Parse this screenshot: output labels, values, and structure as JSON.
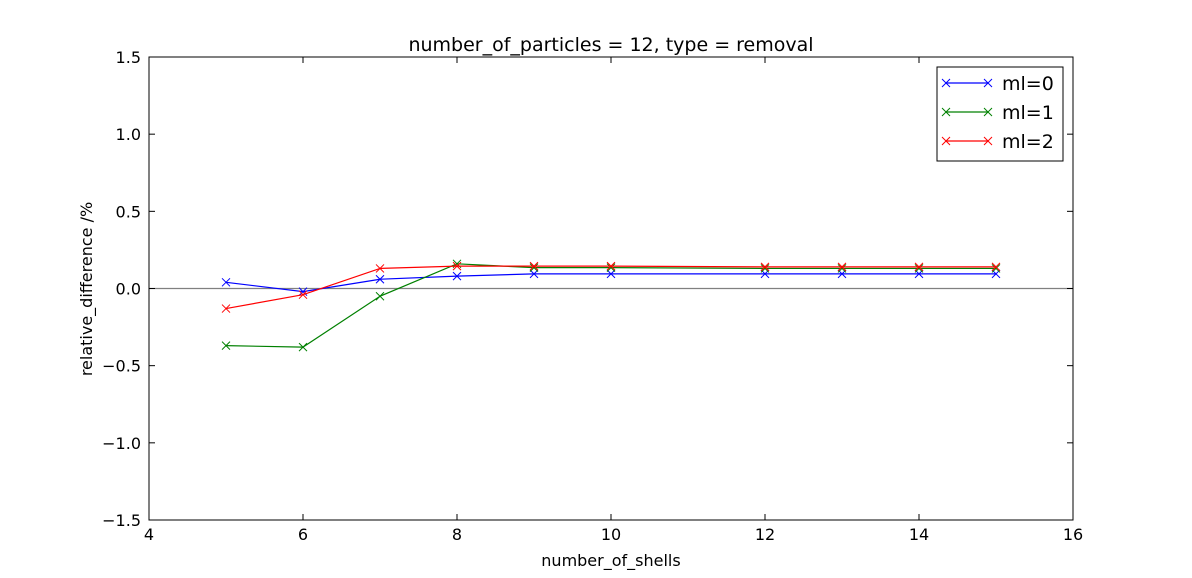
{
  "chart_data": {
    "type": "line",
    "title": "number_of_particles = 12, type = removal",
    "xlabel": "number_of_shells",
    "ylabel": "relative_difference /%",
    "xlim": [
      4,
      16
    ],
    "ylim": [
      -1.5,
      1.5
    ],
    "xticks": [
      4,
      6,
      8,
      10,
      12,
      14,
      16
    ],
    "yticks": [
      -1.5,
      -1.0,
      -0.5,
      0.0,
      0.5,
      1.0,
      1.5
    ],
    "xtick_labels": [
      "4",
      "6",
      "8",
      "10",
      "12",
      "14",
      "16"
    ],
    "ytick_labels": [
      "−1.5",
      "−1.0",
      "−0.5",
      "0.0",
      "0.5",
      "1.0",
      "1.5"
    ],
    "reference_line_y": 0.0,
    "reference_line_color": "#808080",
    "grid": false,
    "legend_position": "top-right",
    "marker": "x",
    "series": [
      {
        "name": "ml=0",
        "color": "#0000ff",
        "x": [
          5,
          6,
          7,
          8,
          9,
          10,
          12,
          13,
          14,
          15
        ],
        "y": [
          0.04,
          -0.02,
          0.06,
          0.08,
          0.095,
          0.095,
          0.095,
          0.095,
          0.095,
          0.095
        ]
      },
      {
        "name": "ml=1",
        "color": "#008000",
        "x": [
          5,
          6,
          7,
          8,
          9,
          10,
          12,
          13,
          14,
          15
        ],
        "y": [
          -0.37,
          -0.38,
          -0.05,
          0.16,
          0.135,
          0.135,
          0.13,
          0.13,
          0.13,
          0.13
        ]
      },
      {
        "name": "ml=2",
        "color": "#ff0000",
        "x": [
          5,
          6,
          7,
          8,
          9,
          10,
          12,
          13,
          14,
          15
        ],
        "y": [
          -0.13,
          -0.04,
          0.13,
          0.145,
          0.145,
          0.145,
          0.14,
          0.14,
          0.14,
          0.14
        ]
      }
    ]
  }
}
